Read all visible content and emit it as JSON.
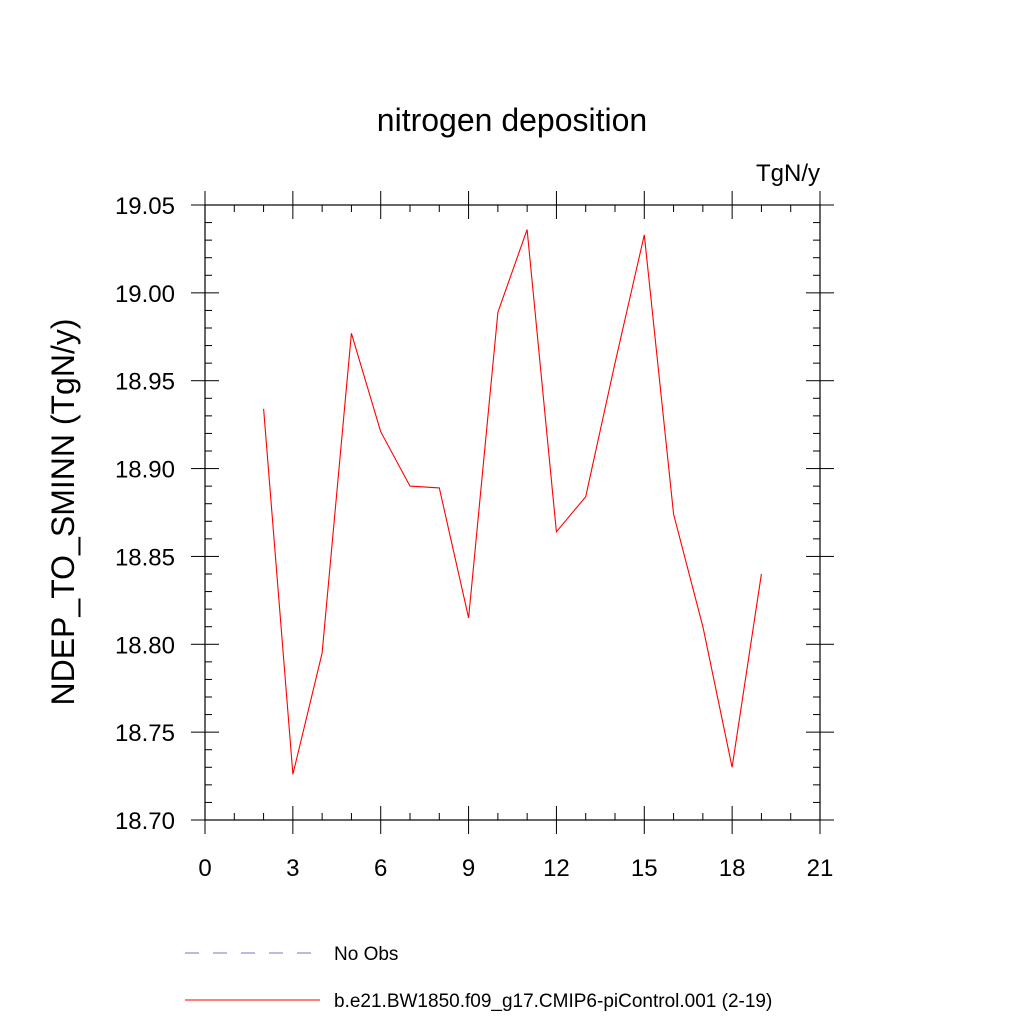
{
  "chart_data": {
    "type": "line",
    "title": "nitrogen deposition",
    "units_label": "TgN/y",
    "xlabel": "",
    "ylabel": "NDEP_TO_SMINN  (TgN/y)",
    "xlim": [
      0,
      21
    ],
    "ylim": [
      18.7,
      19.05
    ],
    "x_ticks": [
      0,
      3,
      6,
      9,
      12,
      15,
      18,
      21
    ],
    "x_tick_labels": [
      "0",
      "3",
      "6",
      "9",
      "12",
      "15",
      "18",
      "21"
    ],
    "y_ticks": [
      18.7,
      18.75,
      18.8,
      18.85,
      18.9,
      18.95,
      19.0,
      19.05
    ],
    "y_tick_labels": [
      "18.70",
      "18.75",
      "18.80",
      "18.85",
      "18.90",
      "18.95",
      "19.00",
      "19.05"
    ],
    "grid": false,
    "legend_position": "bottom",
    "series": [
      {
        "name": "b.e21.BW1850.f09_g17.CMIP6-piControl.001 (2-19)",
        "color": "#ff0000",
        "style": "solid",
        "x": [
          2,
          3,
          4,
          5,
          6,
          7,
          8,
          9,
          10,
          11,
          12,
          13,
          14,
          15,
          16,
          17,
          18,
          19
        ],
        "values": [
          18.934,
          18.726,
          18.795,
          18.977,
          18.921,
          18.89,
          18.889,
          18.815,
          18.989,
          19.036,
          18.864,
          18.884,
          18.96,
          19.033,
          18.874,
          18.81,
          18.73,
          18.84
        ]
      }
    ],
    "legend": [
      {
        "label": "No Obs",
        "color": "#7777cc",
        "style": "dashed"
      },
      {
        "label": "b.e21.BW1850.f09_g17.CMIP6-piControl.001 (2-19)",
        "color": "#ff0000",
        "style": "solid"
      }
    ]
  }
}
